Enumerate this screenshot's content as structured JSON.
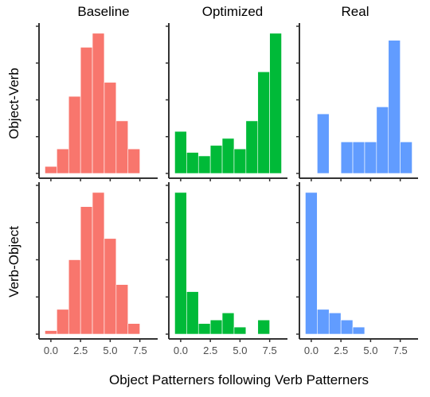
{
  "figure": {
    "x_title": "Object Patterners following Verb Patterners",
    "row_labels": [
      "Object-Verb",
      "Verb-Object"
    ],
    "col_labels": [
      "Baseline",
      "Optimized",
      "Real"
    ],
    "x_ticks": [
      "0.0",
      "2.5",
      "5.0",
      "7.5"
    ]
  },
  "colors": {
    "Baseline": "#f8766d",
    "Optimized": "#00ba38",
    "Real": "#619cff",
    "axis": "#333333"
  },
  "chart_data": {
    "type": "bar",
    "chart_kind": "faceted histogram",
    "xlabel": "Object Patterners following Verb Patterners",
    "ylabel": "",
    "x_tick_values": [
      0,
      2.5,
      5,
      7.5
    ],
    "xlim": [
      -1,
      9
    ],
    "bin_width": 1,
    "bin_centers": [
      0,
      1,
      2,
      3,
      4,
      5,
      6,
      7,
      8
    ],
    "row_ylim": [
      [
        0,
        0.42
      ],
      [
        0,
        0.42
      ]
    ],
    "panels": [
      {
        "row": "Object-Verb",
        "col": "Baseline",
        "values": [
          0.02,
          0.07,
          0.22,
          0.36,
          0.4,
          0.26,
          0.15,
          0.07,
          0
        ]
      },
      {
        "row": "Object-Verb",
        "col": "Optimized",
        "values": [
          0.12,
          0.06,
          0.05,
          0.08,
          0.1,
          0.07,
          0.15,
          0.29,
          0.4
        ]
      },
      {
        "row": "Object-Verb",
        "col": "Real",
        "values": [
          0,
          0.17,
          0,
          0.09,
          0.09,
          0.09,
          0.19,
          0.38,
          0.09
        ]
      },
      {
        "row": "Verb-Object",
        "col": "Baseline",
        "values": [
          0.01,
          0.07,
          0.21,
          0.36,
          0.4,
          0.27,
          0.14,
          0.03,
          0
        ]
      },
      {
        "row": "Verb-Object",
        "col": "Optimized",
        "values": [
          0.4,
          0.12,
          0.03,
          0.04,
          0.06,
          0.02,
          0,
          0.04,
          0
        ]
      },
      {
        "row": "Verb-Object",
        "col": "Real",
        "values": [
          0.4,
          0.07,
          0.06,
          0.04,
          0.02,
          0,
          0,
          0,
          0
        ]
      }
    ]
  }
}
